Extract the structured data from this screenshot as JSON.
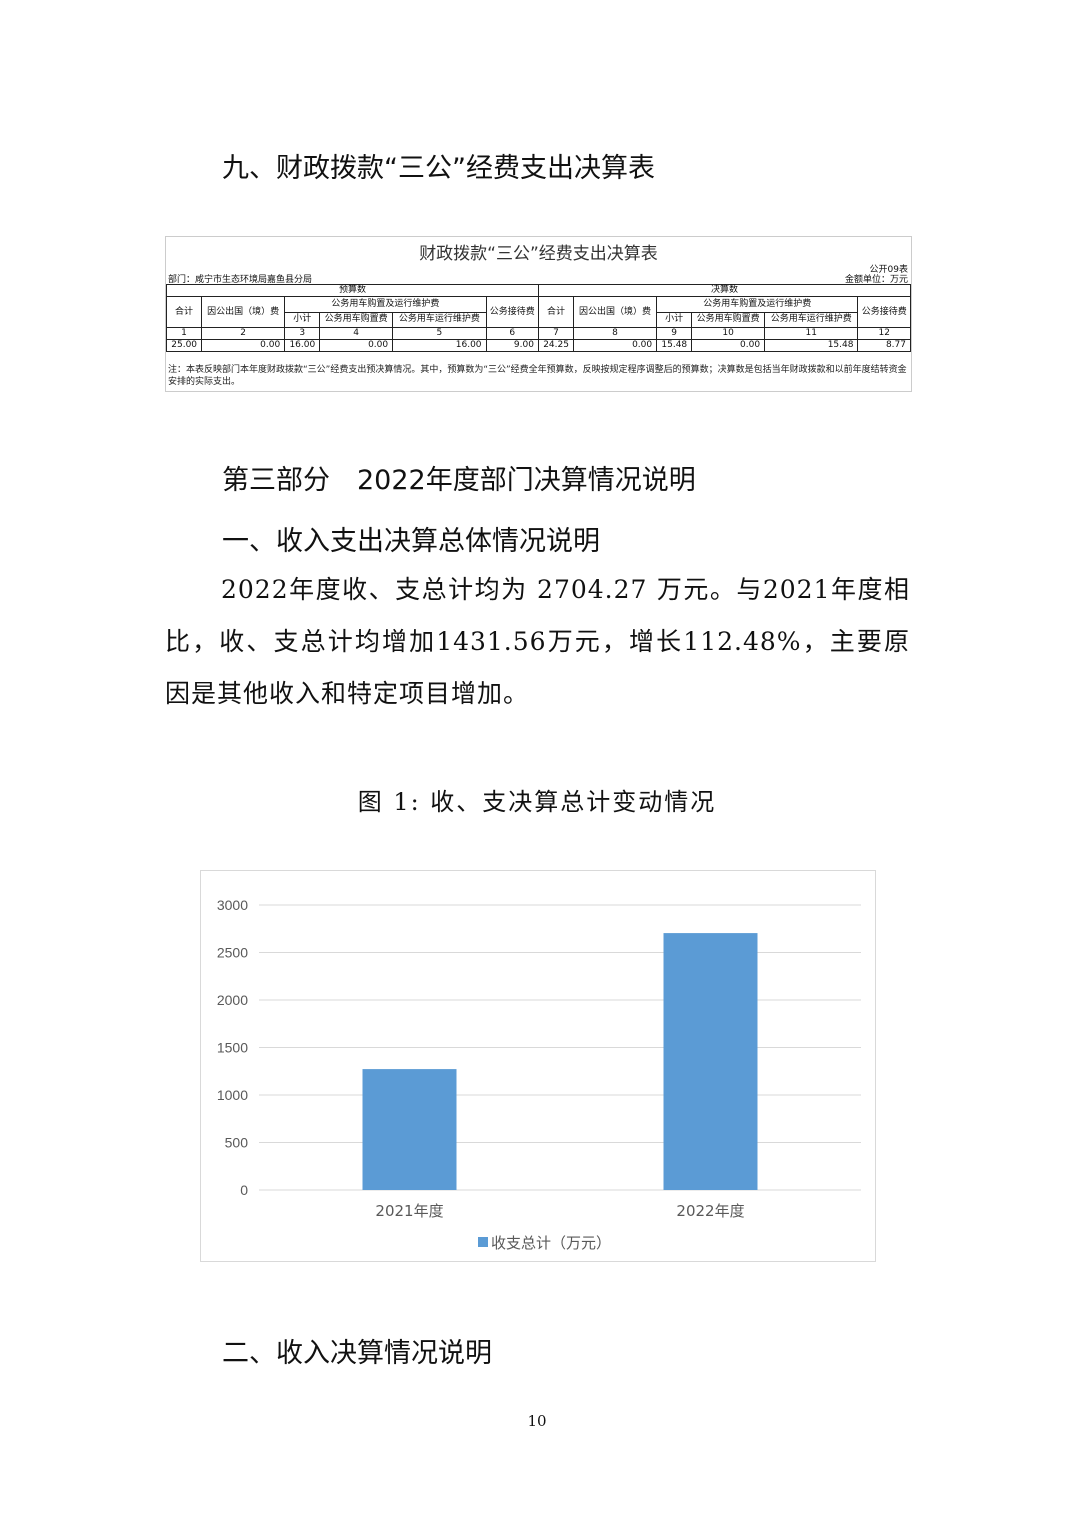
{
  "heading9": "九、财政拨款“三公”经费支出决算表",
  "table": {
    "title": "财政拨款“三公”经费支出决算表",
    "form_no": "公开09表",
    "department": "部门：咸宁市生态环境局嘉鱼县分局",
    "unit": "金额单位：万元",
    "group_budget": "预算数",
    "group_final": "决算数",
    "car_group": "公务用车购置及运行维护费",
    "cols": [
      "合计",
      "因公出国（境）费",
      "小计",
      "公务用车购置费",
      "公务用车运行维护费",
      "公务接待费"
    ],
    "numbers": [
      "1",
      "2",
      "3",
      "4",
      "5",
      "6",
      "7",
      "8",
      "9",
      "10",
      "11",
      "12"
    ],
    "values": [
      "25.00",
      "0.00",
      "16.00",
      "0.00",
      "16.00",
      "9.00",
      "24.25",
      "0.00",
      "15.48",
      "0.00",
      "15.48",
      "8.77"
    ],
    "note": "注：本表反映部门本年度财政拨款“三公”经费支出预决算情况。其中，预算数为“三公”经费全年预算数，反映按规定程序调整后的预算数；决算数是包括当年财政拨款和以前年度结转资金安排的实际支出。"
  },
  "part3": "第三部分　2022年度部门决算情况说明",
  "section1": "一、收入支出决算总体情况说明",
  "paragraph1": "2022年度收、支总计均为 2704.27 万元。与2021年度相比，收、支总计均增加1431.56万元，增长112.48%，主要原因是其他收入和特定项目增加。",
  "figure_caption": "图 1: 收、支决算总计变动情况",
  "chart_data": {
    "type": "bar",
    "categories": [
      "2021年度",
      "2022年度"
    ],
    "series": [
      {
        "name": "收支总计（万元）",
        "values": [
          1272.71,
          2704.27
        ],
        "color": "#5b9bd5"
      }
    ],
    "ylim": [
      0,
      3000
    ],
    "yticks": [
      "0",
      "500",
      "1000",
      "1500",
      "2000",
      "2500",
      "3000"
    ],
    "grid": true,
    "legend": "bottom"
  },
  "section2": "二、收入决算情况说明",
  "page_number": "10"
}
